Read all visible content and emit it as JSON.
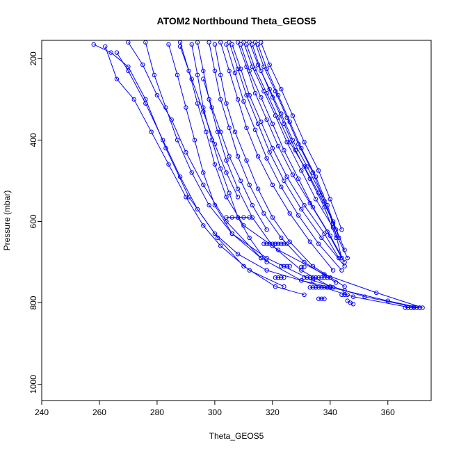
{
  "chart_data": {
    "type": "line",
    "title": "ATOM2 Northbound Theta_GEOS5",
    "xlabel": "Theta_GEOS5",
    "ylabel": "Pressure (mbar)",
    "xlim": [
      240,
      375
    ],
    "ylim": [
      1040,
      155
    ],
    "y_axis_inverted": true,
    "x_ticks": [
      240,
      260,
      280,
      300,
      320,
      340,
      360
    ],
    "y_ticks": [
      200,
      400,
      600,
      800,
      1000
    ],
    "marker": "open-circle",
    "line_style": "solid",
    "grid": false,
    "legend": "none",
    "color": "#0000ff",
    "series": [
      {
        "x": [
          258,
          264,
          270,
          276,
          283,
          291,
          301,
          310,
          321,
          331
        ],
        "y": [
          165,
          185,
          220,
          300,
          420,
          540,
          640,
          710,
          760,
          780
        ]
      },
      {
        "x": [
          262,
          266,
          272,
          278,
          284,
          290,
          296,
          302,
          312,
          324
        ],
        "y": [
          170,
          250,
          300,
          380,
          460,
          540,
          610,
          660,
          720,
          760
        ]
      },
      {
        "x": [
          266,
          270,
          276,
          282,
          288,
          294,
          300,
          308,
          318,
          330,
          345,
          360,
          371
        ],
        "y": [
          185,
          230,
          310,
          400,
          490,
          570,
          630,
          680,
          720,
          745,
          770,
          795,
          812
        ]
      },
      {
        "x": [
          270,
          275,
          280,
          285,
          290,
          296,
          304,
          316
        ],
        "y": [
          160,
          215,
          290,
          350,
          430,
          510,
          600,
          690
        ]
      },
      {
        "x": [
          276,
          279,
          283,
          287,
          292,
          298,
          306,
          318,
          334,
          352,
          369
        ],
        "y": [
          160,
          240,
          320,
          400,
          480,
          560,
          630,
          690,
          745,
          785,
          810
        ]
      },
      {
        "x": [
          284,
          287,
          290,
          293,
          296,
          300,
          306,
          316,
          330,
          348,
          368
        ],
        "y": [
          165,
          240,
          320,
          400,
          480,
          560,
          630,
          690,
          745,
          785,
          812
        ]
      },
      {
        "x": [
          288,
          291,
          294,
          297,
          300,
          304,
          310,
          322,
          338,
          356,
          372
        ],
        "y": [
          160,
          230,
          310,
          380,
          460,
          540,
          610,
          670,
          730,
          775,
          812
        ]
      },
      {
        "x": [
          292,
          294,
          296,
          299,
          302,
          305,
          308,
          312,
          318
        ],
        "y": [
          165,
          240,
          320,
          400,
          470,
          530,
          590,
          640,
          700
        ]
      },
      {
        "x": [
          294,
          296,
          298,
          301,
          304,
          308,
          313,
          320,
          330,
          340
        ],
        "y": [
          160,
          230,
          300,
          380,
          450,
          520,
          590,
          660,
          720,
          760
        ]
      },
      {
        "x": [
          298,
          300,
          302,
          305,
          308,
          312,
          317,
          323,
          331,
          342
        ],
        "y": [
          160,
          230,
          300,
          370,
          440,
          510,
          580,
          640,
          700,
          750
        ]
      },
      {
        "x": [
          300,
          302,
          304,
          307,
          311,
          315,
          320,
          326,
          334,
          345
        ],
        "y": [
          165,
          240,
          310,
          380,
          450,
          520,
          590,
          650,
          710,
          760
        ]
      },
      {
        "x": [
          302,
          305,
          308,
          311,
          315,
          320,
          326,
          333,
          341
        ],
        "y": [
          160,
          230,
          300,
          370,
          440,
          510,
          580,
          650,
          720
        ]
      },
      {
        "x": [
          304,
          307,
          310,
          314,
          318,
          323,
          329,
          336,
          344
        ],
        "y": [
          165,
          235,
          305,
          375,
          445,
          515,
          585,
          655,
          720
        ]
      },
      {
        "x": [
          305,
          308,
          311,
          315,
          319,
          324,
          330,
          337,
          345
        ],
        "y": [
          160,
          225,
          290,
          360,
          430,
          500,
          570,
          640,
          710
        ]
      },
      {
        "x": [
          306,
          309,
          312,
          316,
          320,
          325,
          331,
          338,
          343
        ],
        "y": [
          165,
          225,
          290,
          355,
          420,
          490,
          560,
          630,
          690
        ]
      },
      {
        "x": [
          308,
          311,
          314,
          318,
          322,
          327,
          333,
          339,
          344
        ],
        "y": [
          160,
          220,
          285,
          350,
          415,
          485,
          555,
          625,
          690
        ]
      },
      {
        "x": [
          309,
          312,
          316,
          320,
          324,
          329,
          334,
          340,
          345
        ],
        "y": [
          165,
          230,
          295,
          360,
          425,
          495,
          565,
          635,
          700
        ]
      },
      {
        "x": [
          310,
          313,
          317,
          321,
          325,
          330,
          335,
          341,
          346
        ],
        "y": [
          160,
          220,
          280,
          340,
          405,
          475,
          545,
          615,
          690
        ]
      },
      {
        "x": [
          311,
          314,
          318,
          322,
          326,
          331,
          336,
          341,
          345
        ],
        "y": [
          165,
          225,
          285,
          345,
          405,
          465,
          530,
          600,
          670
        ]
      },
      {
        "x": [
          312,
          315,
          319,
          323,
          327,
          332,
          337,
          341,
          344
        ],
        "y": [
          160,
          215,
          275,
          335,
          400,
          465,
          535,
          605,
          690
        ]
      },
      {
        "x": [
          313,
          316,
          320,
          324,
          328,
          333,
          338,
          342
        ],
        "y": [
          165,
          230,
          295,
          360,
          425,
          495,
          565,
          640
        ]
      },
      {
        "x": [
          314,
          317,
          321,
          325,
          329,
          334,
          338,
          342
        ],
        "y": [
          160,
          220,
          280,
          345,
          410,
          480,
          550,
          620
        ]
      },
      {
        "x": [
          315,
          318,
          322,
          326,
          330,
          335,
          339,
          343
        ],
        "y": [
          165,
          225,
          290,
          355,
          420,
          490,
          560,
          640
        ]
      },
      {
        "x": [
          316,
          319,
          323,
          327,
          331,
          336,
          340,
          344
        ],
        "y": [
          160,
          215,
          275,
          340,
          405,
          475,
          545,
          620
        ]
      },
      {
        "x": [
          288,
          292,
          296,
          300,
          304,
          308
        ],
        "y": [
          170,
          250,
          330,
          410,
          480,
          540
        ]
      },
      {
        "x": [
          296,
          299,
          302,
          305,
          309,
          313,
          318
        ],
        "y": [
          250,
          320,
          380,
          440,
          500,
          560,
          620
        ]
      },
      {
        "x": [
          304,
          306,
          308,
          310,
          312
        ],
        "y": [
          590,
          590,
          590,
          590,
          590
        ]
      },
      {
        "x": [
          317,
          318,
          319,
          320,
          321
        ],
        "y": [
          655,
          655,
          655,
          655,
          655
        ]
      },
      {
        "x": [
          321,
          322,
          323,
          324,
          325
        ],
        "y": [
          655,
          655,
          655,
          655,
          655
        ]
      },
      {
        "x": [
          321,
          322,
          323,
          324
        ],
        "y": [
          738,
          738,
          738,
          738
        ]
      },
      {
        "x": [
          323,
          324,
          325,
          326
        ],
        "y": [
          710,
          710,
          710,
          710
        ]
      },
      {
        "x": [
          330,
          331
        ],
        "y": [
          712,
          712
        ]
      },
      {
        "x": [
          331,
          332,
          333,
          334,
          335,
          336,
          337,
          338,
          339,
          340
        ],
        "y": [
          738,
          738,
          738,
          738,
          738,
          738,
          738,
          738,
          738,
          738
        ]
      },
      {
        "x": [
          333,
          334,
          335,
          336,
          337,
          338,
          339,
          340,
          341
        ],
        "y": [
          762,
          762,
          762,
          762,
          762,
          762,
          762,
          762,
          762
        ]
      },
      {
        "x": [
          344,
          345,
          346
        ],
        "y": [
          780,
          780,
          780
        ]
      },
      {
        "x": [
          346,
          347,
          348
        ],
        "y": [
          795,
          800,
          803
        ]
      },
      {
        "x": [
          366,
          367,
          368,
          369,
          370,
          371
        ],
        "y": [
          812,
          812,
          812,
          812,
          812,
          812
        ]
      },
      {
        "x": [
          336,
          337,
          338
        ],
        "y": [
          790,
          790,
          790
        ]
      }
    ]
  }
}
